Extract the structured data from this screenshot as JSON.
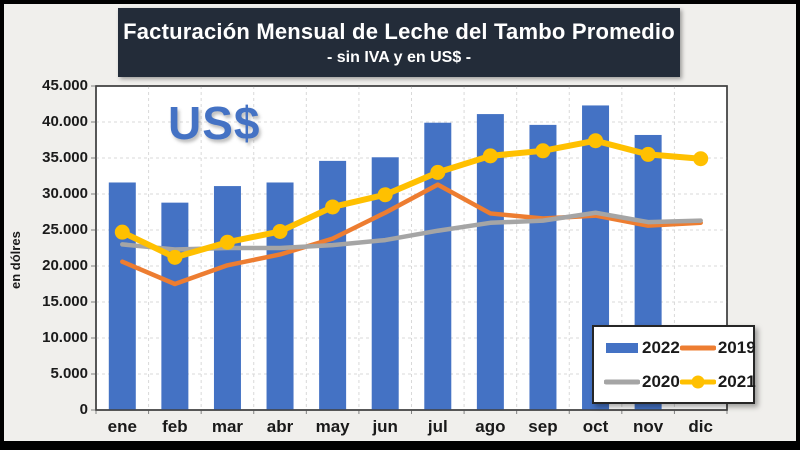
{
  "title": {
    "text": "Facturación Mensual de Leche del Tambo Promedio",
    "subtitle": "- sin IVA y en US$ -",
    "background": "#232c39",
    "text_color": "#ffffff"
  },
  "annotation": {
    "text": "US$",
    "color": "#4472c4"
  },
  "y_axis": {
    "title": "en dólres",
    "tick_labels_top_to_bottom": [
      "45.000",
      "40.000",
      "35.000",
      "30.000",
      "25.000",
      "20.000",
      "15.000",
      "10.000",
      "5.000",
      "0"
    ]
  },
  "legend": {
    "labels": [
      "2022",
      "2019",
      "2020",
      "2021"
    ]
  },
  "chart_data": {
    "type": "bar",
    "title": "Facturación Mensual de Leche del Tambo Promedio - sin IVA y en US$ -",
    "xlabel": "",
    "ylabel": "en dólres",
    "ylim": [
      0,
      45000
    ],
    "ytick_step": 5000,
    "grid": true,
    "legend_position": "bottom-right",
    "categories": [
      "ene",
      "feb",
      "mar",
      "abr",
      "may",
      "jun",
      "jul",
      "ago",
      "sep",
      "oct",
      "nov",
      "dic"
    ],
    "series": [
      {
        "name": "2022",
        "type": "bar",
        "color": "#4472c4",
        "marker": false,
        "values": [
          31600,
          28800,
          31100,
          31600,
          34600,
          35100,
          39900,
          41100,
          39600,
          42300,
          38200,
          null
        ]
      },
      {
        "name": "2019",
        "type": "line",
        "color": "#ed7d31",
        "marker": false,
        "values": [
          20600,
          17500,
          20100,
          21600,
          23800,
          27400,
          31300,
          27300,
          26600,
          27000,
          25600,
          26000
        ]
      },
      {
        "name": "2020",
        "type": "line",
        "color": "#a5a5a5",
        "marker": false,
        "values": [
          23000,
          22300,
          22500,
          22500,
          22900,
          23600,
          24900,
          26000,
          26300,
          27400,
          26100,
          26300
        ]
      },
      {
        "name": "2021",
        "type": "line",
        "color": "#ffc000",
        "marker": true,
        "values": [
          24700,
          21200,
          23300,
          24800,
          28200,
          29900,
          33000,
          35300,
          36000,
          37400,
          35500,
          34900
        ]
      }
    ]
  },
  "style": {
    "panel_bg": "#f0efec",
    "plot_bg": "#ffffff",
    "plot_border": "#404040",
    "gridline": "#d9d9d9",
    "tick": "#808080"
  }
}
